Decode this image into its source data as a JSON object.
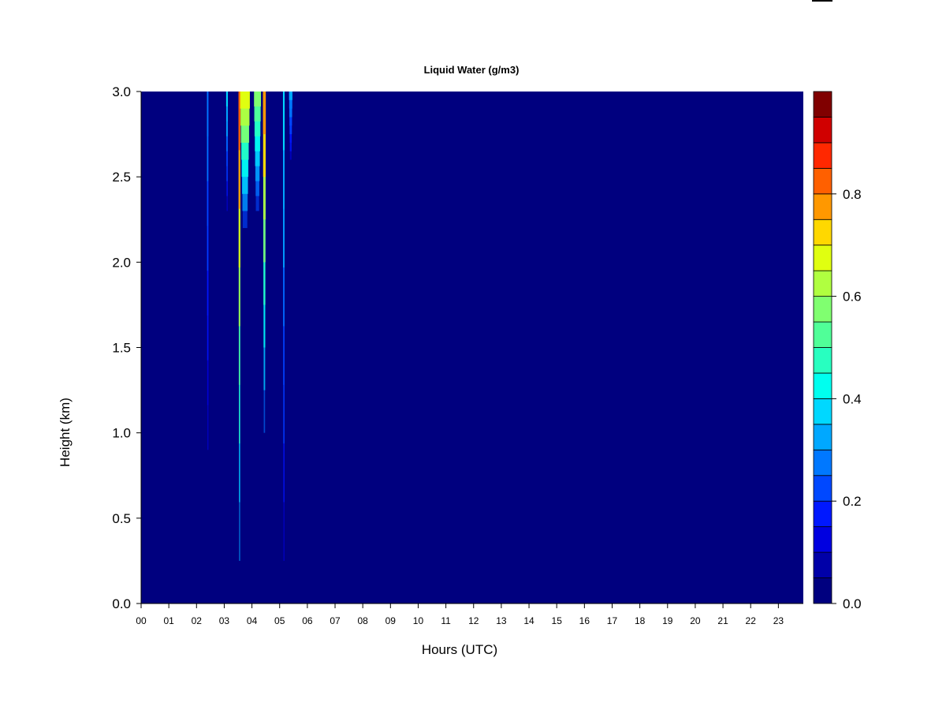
{
  "chart_data": {
    "type": "heatmap",
    "title": "Liquid Water (g/m3)",
    "xlabel": "Hours (UTC)",
    "ylabel": "Height (km)",
    "xlim": [
      0,
      23.9
    ],
    "ylim": [
      0.0,
      3.0
    ],
    "x_ticks": [
      "00",
      "01",
      "02",
      "03",
      "04",
      "05",
      "06",
      "07",
      "08",
      "09",
      "10",
      "11",
      "12",
      "13",
      "14",
      "15",
      "16",
      "17",
      "18",
      "19",
      "20",
      "21",
      "22",
      "23"
    ],
    "y_ticks": [
      "0.0",
      "0.5",
      "1.0",
      "1.5",
      "2.0",
      "2.5",
      "3.0"
    ],
    "colorbar": {
      "min": 0.0,
      "max": 0.95,
      "levels": 19,
      "ticks": [
        "0.0",
        "0.2",
        "0.4",
        "0.6",
        "0.8"
      ],
      "colors": [
        "#00007F",
        "#0000A8",
        "#0000E0",
        "#0018FF",
        "#0048FF",
        "#0078FF",
        "#00A8FF",
        "#00D8FF",
        "#00FFEF",
        "#28FFC0",
        "#50FF98",
        "#80FF70",
        "#B0FF40",
        "#E0FF10",
        "#FFD800",
        "#FF9800",
        "#FF6000",
        "#FF2800",
        "#D00000",
        "#800000"
      ]
    },
    "background_value": 0.0,
    "features": [
      {
        "hour": 2.4,
        "width_h": 0.05,
        "bottom_km": 0.9,
        "top_km": 3.0,
        "peak_value": 0.25
      },
      {
        "hour": 3.1,
        "width_h": 0.06,
        "bottom_km": 2.3,
        "top_km": 3.0,
        "peak_value": 0.35
      },
      {
        "hour": 3.55,
        "width_h": 0.07,
        "bottom_km": 0.25,
        "top_km": 3.0,
        "peak_value": 0.8
      },
      {
        "hour": 3.75,
        "width_h": 0.35,
        "bottom_km": 2.2,
        "top_km": 3.0,
        "peak_value": 0.65
      },
      {
        "hour": 4.2,
        "width_h": 0.25,
        "bottom_km": 2.3,
        "top_km": 3.0,
        "peak_value": 0.55
      },
      {
        "hour": 4.45,
        "width_h": 0.1,
        "bottom_km": 1.0,
        "top_km": 3.0,
        "peak_value": 0.75
      },
      {
        "hour": 5.15,
        "width_h": 0.06,
        "bottom_km": 0.25,
        "top_km": 3.0,
        "peak_value": 0.35
      },
      {
        "hour": 5.4,
        "width_h": 0.12,
        "bottom_km": 2.6,
        "top_km": 3.0,
        "peak_value": 0.3
      }
    ]
  }
}
